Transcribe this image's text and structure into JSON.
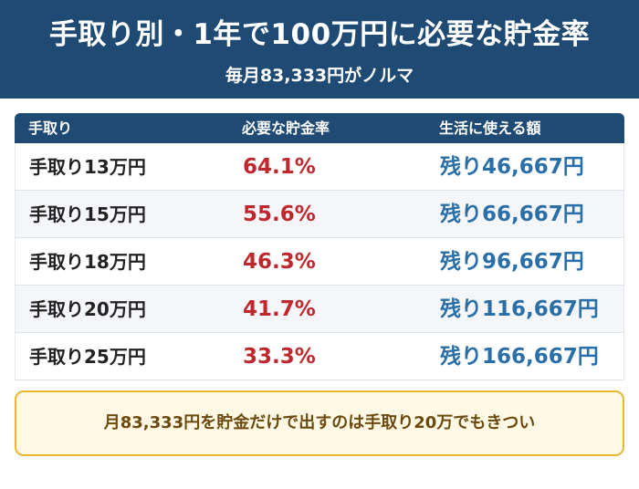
{
  "header": {
    "title": "手取り別・1年で100万円に必要な貯金率",
    "subtitle": "毎月83,333円がノルマ"
  },
  "table": {
    "columns": [
      "手取り",
      "必要な貯金率",
      "生活に使える額"
    ],
    "rows": [
      {
        "income": "手取り13万円",
        "rate": "64.1%",
        "remaining": "残り46,667円"
      },
      {
        "income": "手取り15万円",
        "rate": "55.6%",
        "remaining": "残り66,667円"
      },
      {
        "income": "手取り18万円",
        "rate": "46.3%",
        "remaining": "残り96,667円"
      },
      {
        "income": "手取り20万円",
        "rate": "41.7%",
        "remaining": "残り116,667円"
      },
      {
        "income": "手取り25万円",
        "rate": "33.3%",
        "remaining": "残り166,667円"
      }
    ]
  },
  "note": {
    "text": "月83,333円を貯金だけで出すのは手取り20万でもきつい"
  },
  "colors": {
    "header_bg": "#1f4a73",
    "rate_red": "#c0272d",
    "remaining_blue": "#2a6fa8",
    "note_border": "#e8b830",
    "note_bg": "#fff8e4"
  }
}
